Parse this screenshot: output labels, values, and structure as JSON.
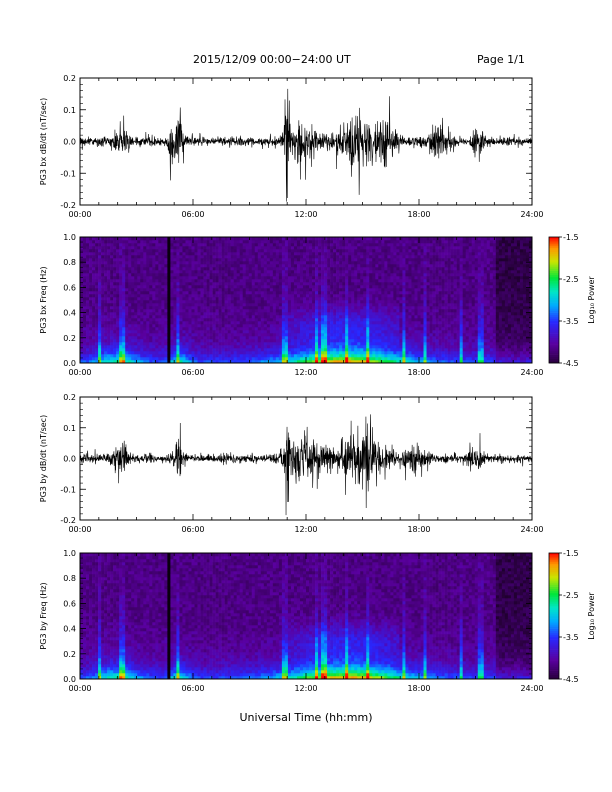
{
  "header": {
    "title": "2015/12/09  00:00−24:00 UT",
    "page": "Page 1/1"
  },
  "chart_data": [
    {
      "type": "line",
      "id": "bx-waveform",
      "ylabel": "PG3 bx dB/dt (nT/sec)",
      "xlim": [
        0,
        24
      ],
      "ylim": [
        -0.2,
        0.2
      ],
      "x_ticks": [
        "00:00",
        "06:00",
        "12:00",
        "18:00",
        "24:00"
      ],
      "y_ticks": [
        "0.2",
        "0.1",
        "0.0",
        "-0.1",
        "-0.2"
      ],
      "bursts": [
        {
          "t": 2.2,
          "amp": 0.055,
          "w": 0.35
        },
        {
          "t": 4.8,
          "amp": 0.2,
          "w": 0.08
        },
        {
          "t": 5.2,
          "amp": 0.12,
          "w": 0.25
        },
        {
          "t": 11.0,
          "amp": 0.2,
          "w": 0.12
        },
        {
          "t": 11.8,
          "amp": 0.07,
          "w": 0.8
        },
        {
          "t": 14.8,
          "amp": 0.08,
          "w": 1.2
        },
        {
          "t": 16.2,
          "amp": 0.06,
          "w": 0.6
        },
        {
          "t": 19.0,
          "amp": 0.05,
          "w": 0.6
        },
        {
          "t": 21.2,
          "amp": 0.06,
          "w": 0.3
        }
      ]
    },
    {
      "type": "heatmap",
      "id": "bx-spectrogram",
      "ylabel": "PG3 bx Freq (Hz)",
      "xlim": [
        0,
        24
      ],
      "ylim": [
        0,
        1.0
      ],
      "x_ticks": [
        "00:00",
        "06:00",
        "12:00",
        "18:00",
        "24:00"
      ],
      "y_ticks": [
        "1.0",
        "0.8",
        "0.6",
        "0.4",
        "0.2",
        "0.0"
      ],
      "colorbar": {
        "label": "Log₁₀ Power",
        "range": [
          -4.5,
          -1.5
        ],
        "ticks": [
          "-1.5",
          "-2.5",
          "-3.5",
          "-4.5"
        ]
      }
    },
    {
      "type": "line",
      "id": "by-waveform",
      "ylabel": "PG3 by dB/dt (nT/sec)",
      "xlim": [
        0,
        24
      ],
      "ylim": [
        -0.2,
        0.2
      ],
      "x_ticks": [
        "00:00",
        "06:00",
        "12:00",
        "18:00",
        "24:00"
      ],
      "y_ticks": [
        "0.2",
        "0.1",
        "0.0",
        "-0.1",
        "-0.2"
      ],
      "bursts": [
        {
          "t": 2.2,
          "amp": 0.06,
          "w": 0.4
        },
        {
          "t": 5.2,
          "amp": 0.06,
          "w": 0.25
        },
        {
          "t": 11.0,
          "amp": 0.2,
          "w": 0.1
        },
        {
          "t": 12.0,
          "amp": 0.08,
          "w": 1.0
        },
        {
          "t": 15.0,
          "amp": 0.1,
          "w": 1.2
        },
        {
          "t": 17.8,
          "amp": 0.05,
          "w": 0.6
        },
        {
          "t": 21.0,
          "amp": 0.04,
          "w": 0.4
        }
      ]
    },
    {
      "type": "heatmap",
      "id": "by-spectrogram",
      "ylabel": "PG3 by Freq (Hz)",
      "xlim": [
        0,
        24
      ],
      "ylim": [
        0,
        1.0
      ],
      "x_ticks": [
        "00:00",
        "06:00",
        "12:00",
        "18:00",
        "24:00"
      ],
      "y_ticks": [
        "1.0",
        "0.8",
        "0.6",
        "0.4",
        "0.2",
        "0.0"
      ],
      "colorbar": {
        "label": "Log₁₀ Power",
        "range": [
          -4.5,
          -1.5
        ],
        "ticks": [
          "-1.5",
          "-2.5",
          "-3.5",
          "-4.5"
        ]
      }
    }
  ],
  "xlabel": "Universal Time (hh:mm)"
}
